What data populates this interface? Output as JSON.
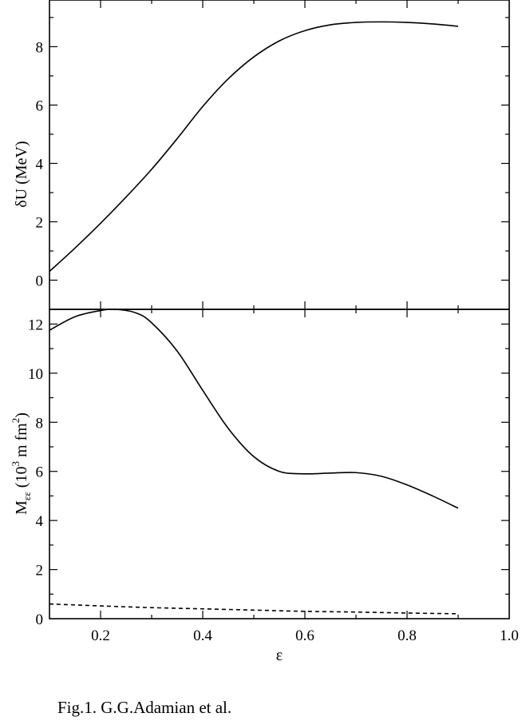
{
  "chart_data": [
    {
      "type": "line",
      "ylabel": "δU (MeV)",
      "xlim": [
        0.1,
        1.0
      ],
      "ylim": [
        -1,
        9.6
      ],
      "yticks": [
        0,
        2,
        4,
        6,
        8
      ],
      "ytick_labels": [
        "0",
        "2",
        "4",
        "6",
        "8"
      ],
      "series": [
        {
          "style": "solid",
          "x": [
            0.1,
            0.15,
            0.2,
            0.25,
            0.3,
            0.35,
            0.4,
            0.45,
            0.5,
            0.55,
            0.6,
            0.65,
            0.7,
            0.75,
            0.8,
            0.85,
            0.9
          ],
          "y": [
            0.3,
            1.1,
            1.95,
            2.85,
            3.8,
            4.85,
            5.95,
            6.9,
            7.65,
            8.2,
            8.55,
            8.75,
            8.83,
            8.85,
            8.83,
            8.78,
            8.7
          ]
        }
      ]
    },
    {
      "type": "line",
      "ylabel_main": "M",
      "ylabel_sub": "εε",
      "ylabel_open": " (10",
      "ylabel_sup1": "3",
      "ylabel_mid": " m fm",
      "ylabel_sup2": "2",
      "ylabel_close": ")",
      "xlabel": "ε",
      "xlim": [
        0.1,
        1.0
      ],
      "ylim": [
        0,
        12.6
      ],
      "xticks": [
        0.2,
        0.4,
        0.6,
        0.8,
        1.0
      ],
      "xtick_labels": [
        "0.2",
        "0.4",
        "0.6",
        "0.8",
        "1.0"
      ],
      "yticks": [
        0,
        2,
        4,
        6,
        8,
        10,
        12
      ],
      "ytick_labels": [
        "0",
        "2",
        "4",
        "6",
        "8",
        "10",
        "12"
      ],
      "series": [
        {
          "style": "solid",
          "x": [
            0.1,
            0.15,
            0.2,
            0.23,
            0.27,
            0.3,
            0.35,
            0.4,
            0.45,
            0.5,
            0.55,
            0.6,
            0.65,
            0.7,
            0.75,
            0.8,
            0.85,
            0.9
          ],
          "y": [
            11.75,
            12.3,
            12.55,
            12.6,
            12.45,
            12.05,
            10.9,
            9.3,
            7.75,
            6.6,
            6.0,
            5.9,
            5.93,
            5.95,
            5.8,
            5.45,
            5.0,
            4.5
          ]
        },
        {
          "style": "dashed",
          "x": [
            0.1,
            0.2,
            0.3,
            0.4,
            0.5,
            0.6,
            0.7,
            0.8,
            0.9
          ],
          "y": [
            0.6,
            0.52,
            0.45,
            0.4,
            0.35,
            0.3,
            0.27,
            0.23,
            0.2
          ]
        }
      ]
    }
  ],
  "caption": "Fig.1. G.G.Adamian et al."
}
